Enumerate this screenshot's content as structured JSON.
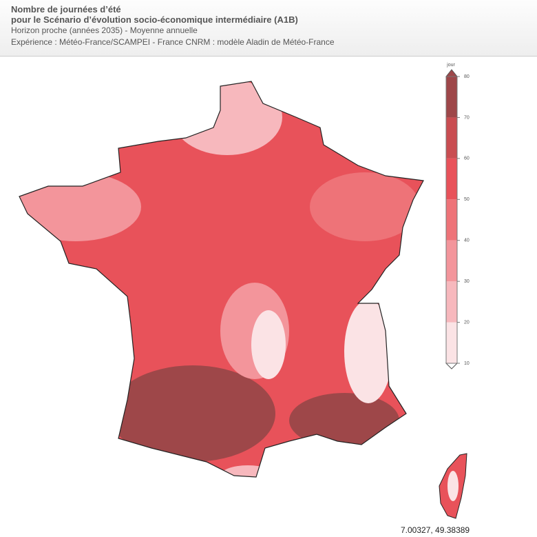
{
  "header": {
    "title_lines": [
      "Nombre de journées d’été",
      "pour le Scénario d’évolution socio-économique intermédiaire (A1B)"
    ],
    "subtitle": "Horizon proche (années 2035) - Moyenne annuelle",
    "experiment": "Expérience : Météo-France/SCAMPEI - France CNRM : modèle Aladin de Météo-France"
  },
  "legend": {
    "unit": "jour",
    "ticks": [
      10,
      20,
      30,
      40,
      50,
      60,
      70,
      80
    ],
    "colors": [
      "#fbe3e5",
      "#f7b8bd",
      "#f3959b",
      "#ee7378",
      "#e8525a",
      "#c94d51",
      "#9e4749"
    ]
  },
  "coordinates": "7.00327, 49.38389"
}
